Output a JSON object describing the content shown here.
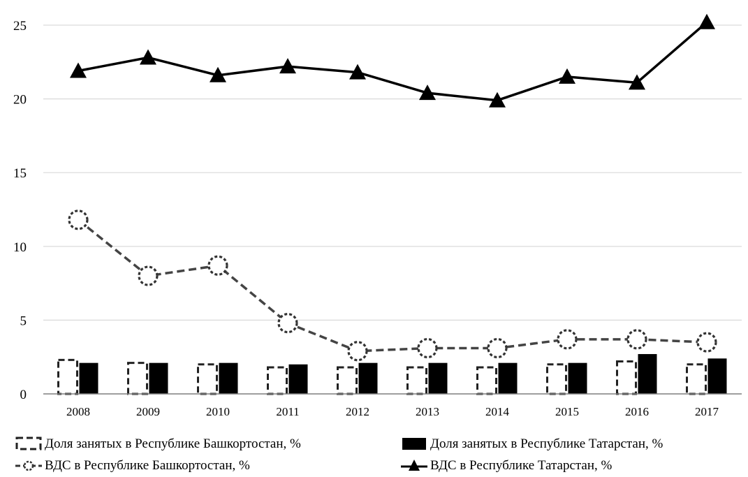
{
  "chart_data": {
    "type": "bar",
    "categories": [
      "2008",
      "2009",
      "2010",
      "2011",
      "2012",
      "2013",
      "2014",
      "2015",
      "2016",
      "2017"
    ],
    "ylim": [
      0,
      25
    ],
    "yticks": [
      0,
      5,
      10,
      15,
      20,
      25
    ],
    "grid": true,
    "legend_position": "bottom",
    "series": [
      {
        "name": "Доля занятых в Республике Башкортостан, %",
        "kind": "bar",
        "style": "dashed-outline",
        "values": [
          2.3,
          2.1,
          2.0,
          1.8,
          1.8,
          1.8,
          1.8,
          2.0,
          2.2,
          2.0
        ]
      },
      {
        "name": "Доля занятых в Республике Татарстан, %",
        "kind": "bar",
        "style": "solid-black",
        "values": [
          2.1,
          2.1,
          2.1,
          2.0,
          2.1,
          2.1,
          2.1,
          2.1,
          2.7,
          2.4
        ]
      },
      {
        "name": "ВДС в Республике Башкортостан, %",
        "kind": "line",
        "style": "dashed-circle",
        "values": [
          11.8,
          8.0,
          8.7,
          4.8,
          2.9,
          3.1,
          3.1,
          3.7,
          3.7,
          3.5
        ]
      },
      {
        "name": "ВДС в Республике Татарстан, %",
        "kind": "line",
        "style": "solid-triangle",
        "values": [
          21.9,
          22.8,
          21.6,
          22.2,
          21.8,
          20.4,
          19.9,
          21.5,
          21.1,
          25.2
        ]
      }
    ],
    "colors": {
      "bars_tatarstan": "#000000",
      "bars_bashkortostan_outline": "#222222",
      "grid": "#d9d9d9",
      "axis": "#7f7f7f"
    }
  }
}
